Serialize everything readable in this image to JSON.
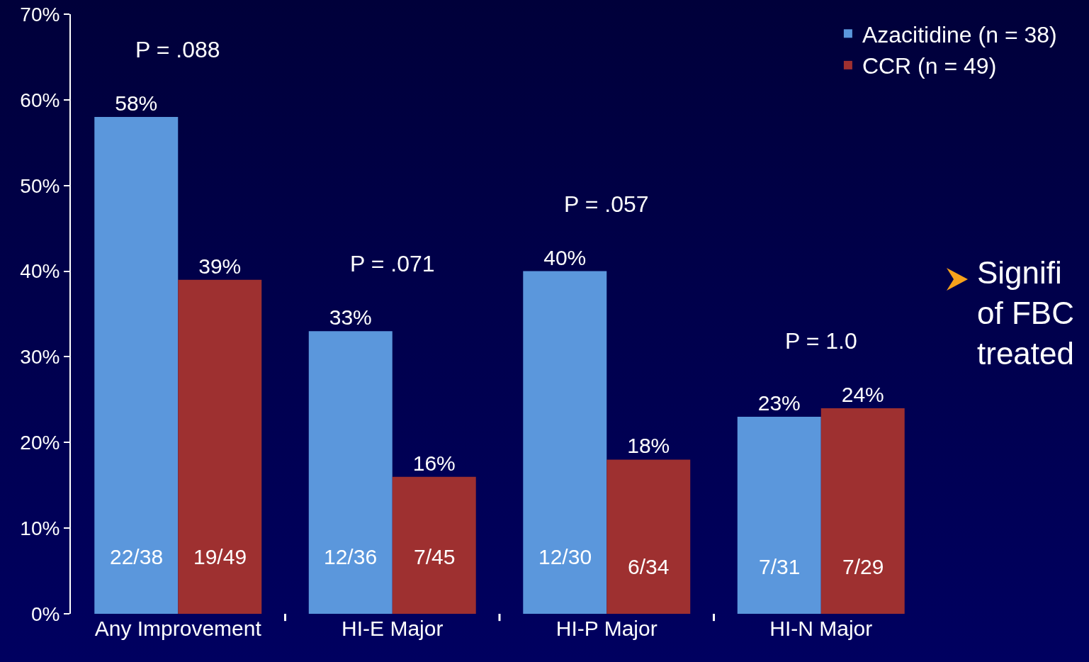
{
  "chart_data": {
    "type": "bar",
    "categories": [
      "Any Improvement",
      "HI-E Major",
      "HI-P Major",
      "HI-N Major"
    ],
    "series": [
      {
        "name": "Azacitidine (n = 38)",
        "color": "#5b97dc",
        "values": [
          58,
          33,
          40,
          23
        ],
        "value_labels": [
          "58%",
          "33%",
          "40%",
          "23%"
        ]
      },
      {
        "name": "CCR (n = 49)",
        "color": "#9e3030",
        "values": [
          39,
          16,
          18,
          24
        ],
        "value_labels": [
          "39%",
          "16%",
          "18%",
          "24%"
        ]
      }
    ],
    "ylim": [
      0,
      70
    ],
    "yticks": [
      {
        "value": 0,
        "label": "0%"
      },
      {
        "value": 10,
        "label": "10%"
      },
      {
        "value": 20,
        "label": "20%"
      },
      {
        "value": 30,
        "label": "30%"
      },
      {
        "value": 40,
        "label": "40%"
      },
      {
        "value": 50,
        "label": "50%"
      },
      {
        "value": 60,
        "label": "60%"
      },
      {
        "value": 70,
        "label": "70%"
      }
    ],
    "annotations": [
      "P = .088",
      {
        "text": "22/38",
        "x": "Any Improvement",
        "y": 6.7
      },
      {
        "text": "19/49",
        "x": "Any Improvement",
        "y": 6.7
      },
      "P = .071",
      {
        "text": "12/36",
        "x": "HI-E Major",
        "y": 6.7
      },
      {
        "text": "7/45",
        "x": "HI-E Major",
        "y": 6.7
      },
      "P = .057",
      {
        "text": "12/30",
        "x": "HI-P Major",
        "y": 6.7
      },
      {
        "text": "6/34",
        "x": "HI-P Major",
        "y": 5.5
      },
      "P = 1.0",
      {
        "text": "7/31",
        "x": "HI-N Major",
        "y": 5.5
      },
      {
        "text": "7/29",
        "x": "HI-N Major",
        "y": 5.5
      },
      "Signifi\nof FBC\ntreated"
    ],
    "grid": false,
    "legend": "top right"
  }
}
